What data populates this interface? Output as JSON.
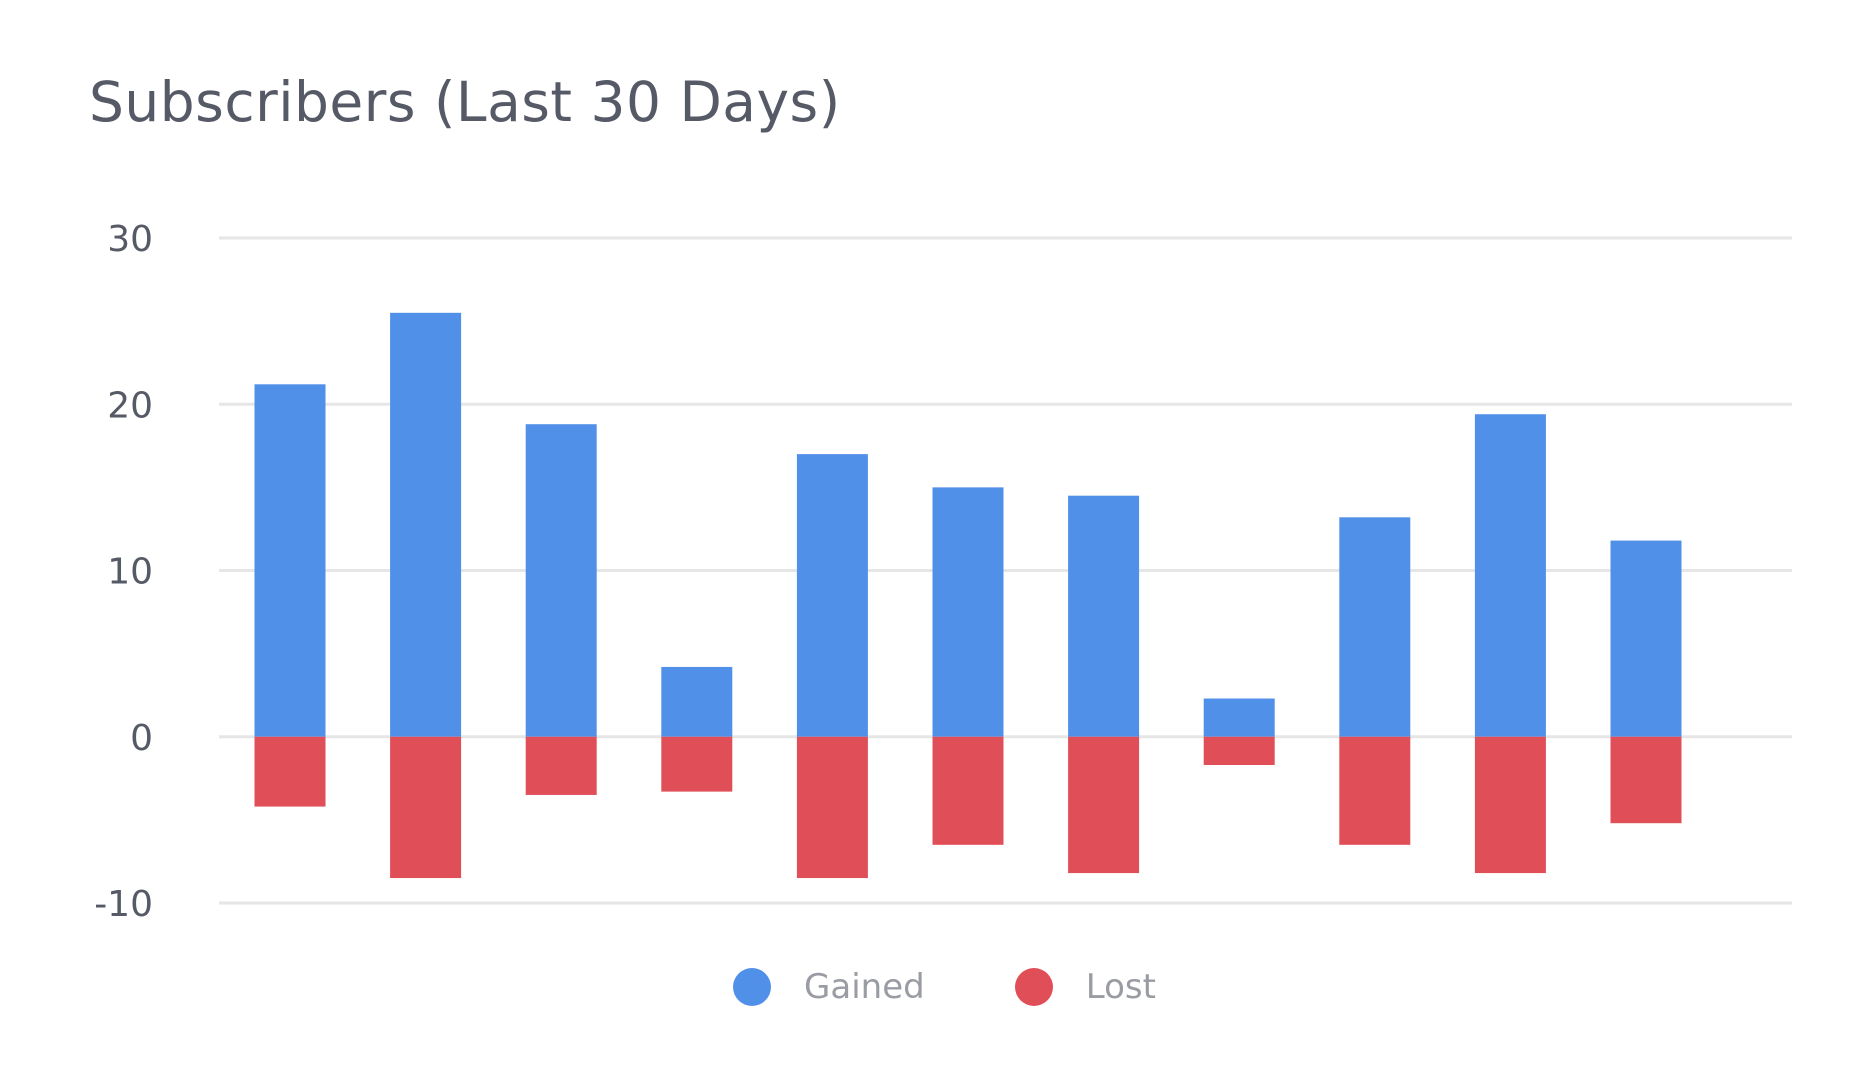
{
  "chart_data": {
    "type": "bar",
    "title": "Subscribers (Last 30 Days)",
    "xlabel": "",
    "ylabel": "",
    "ylim": [
      -10,
      30
    ],
    "yticks": [
      30,
      20,
      10,
      0,
      -10
    ],
    "grid": true,
    "legend_position": "bottom",
    "stacked": true,
    "categories": [
      "",
      "",
      "",
      "",
      "",
      "",
      "",
      "",
      "",
      "",
      ""
    ],
    "series": [
      {
        "name": "Gained",
        "color": "#5190e8",
        "values": [
          21.2,
          25.5,
          18.8,
          4.2,
          17,
          15,
          14.5,
          2.3,
          13.2,
          19.4,
          11.8
        ]
      },
      {
        "name": "Lost",
        "color": "#e04e57",
        "values": [
          -4.2,
          -8.5,
          -3.5,
          -3.3,
          -8.5,
          -6.5,
          -8.2,
          -1.7,
          -6.5,
          -8.2,
          -5.2
        ]
      }
    ]
  },
  "colors": {
    "grid": "#e6e6e6",
    "text": "#565a66",
    "legend_text": "#9a9ca3"
  }
}
